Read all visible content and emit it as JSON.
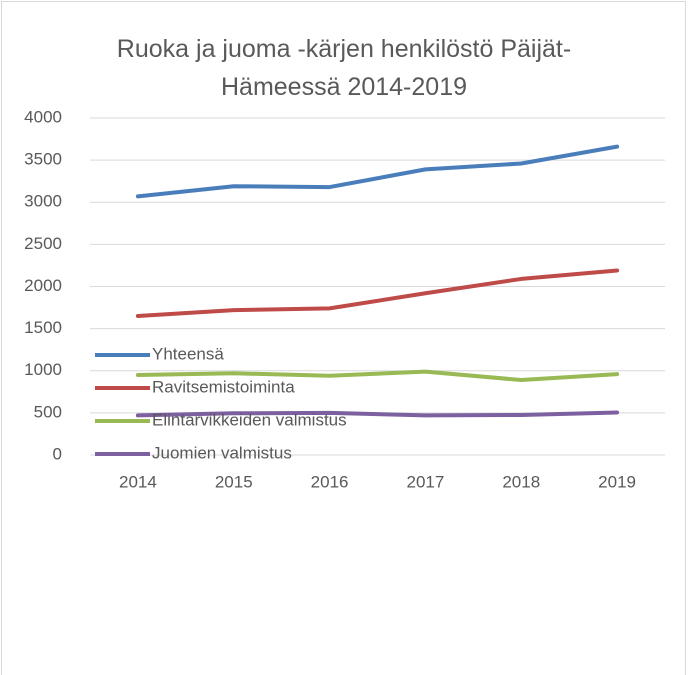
{
  "chart_data": {
    "type": "line",
    "title": "Ruoka ja juoma -kärjen henkilöstö Päijät-Hämeessä 2014-2019",
    "categories": [
      "2014",
      "2015",
      "2016",
      "2017",
      "2018",
      "2019"
    ],
    "series": [
      {
        "name": "Yhteensä",
        "color": "#4a7ebb",
        "values": [
          3070,
          3190,
          3180,
          3390,
          3460,
          3660
        ]
      },
      {
        "name": "Ravitsemistoiminta",
        "color": "#be4b48",
        "values": [
          1650,
          1720,
          1740,
          1920,
          2090,
          2190
        ]
      },
      {
        "name": "Elintarvikkeiden valmistus",
        "color": "#98b954",
        "values": [
          950,
          970,
          940,
          990,
          890,
          960
        ]
      },
      {
        "name": "Juomien valmistus",
        "color": "#7d60a0",
        "values": [
          470,
          495,
          500,
          470,
          475,
          505
        ]
      }
    ],
    "ylim": [
      0,
      4000
    ],
    "yticks": [
      0,
      500,
      1000,
      1500,
      2000,
      2500,
      3000,
      3500,
      4000
    ],
    "grid": true,
    "legend": "bottom"
  }
}
